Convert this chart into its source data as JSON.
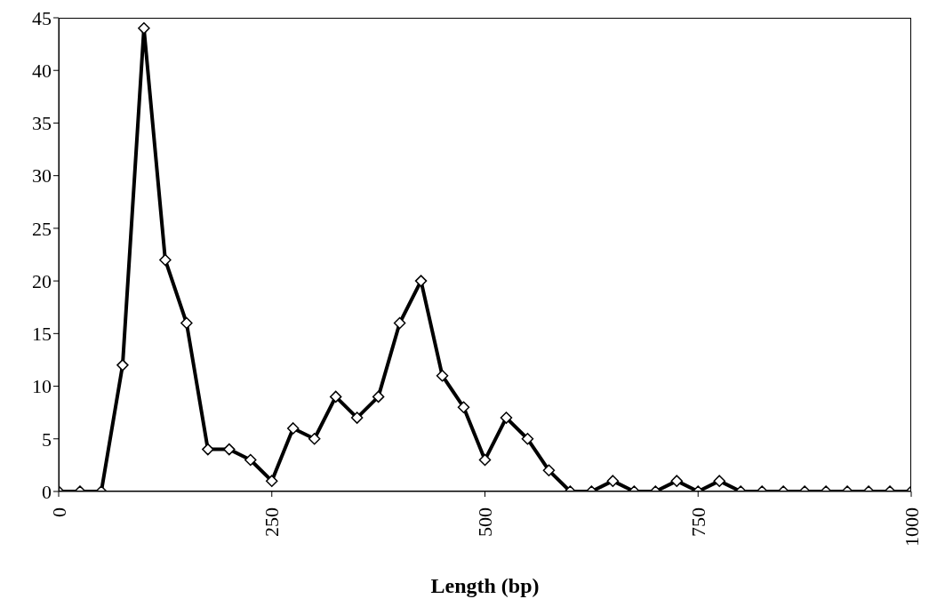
{
  "chart_data": {
    "type": "line",
    "xlabel": "Length (bp)",
    "x": [
      0,
      25,
      50,
      75,
      100,
      125,
      150,
      175,
      200,
      225,
      250,
      275,
      300,
      325,
      350,
      375,
      400,
      425,
      450,
      475,
      500,
      525,
      550,
      575,
      600,
      625,
      650,
      675,
      700,
      725,
      750,
      775,
      800,
      825,
      850,
      875,
      900,
      925,
      950,
      975,
      1000
    ],
    "series": [
      {
        "color": "#000000",
        "values": [
          0,
          0,
          0,
          12,
          44,
          22,
          16,
          4,
          4,
          3,
          1,
          6,
          5,
          9,
          7,
          9,
          16,
          20,
          11,
          8,
          3,
          7,
          5,
          2,
          0,
          0,
          1,
          0,
          0,
          1,
          0,
          1,
          0,
          0,
          0,
          0,
          0,
          0,
          0,
          0,
          0
        ]
      }
    ],
    "xlim": [
      0,
      1000
    ],
    "xticks": [
      0,
      250,
      500,
      750,
      1000
    ],
    "ylim": [
      0,
      45
    ],
    "yticks": [
      0,
      5,
      10,
      15,
      20,
      25,
      30,
      35,
      40,
      45
    ],
    "grid": false,
    "legend": false,
    "marker": "diamond",
    "line_style": "solid"
  }
}
